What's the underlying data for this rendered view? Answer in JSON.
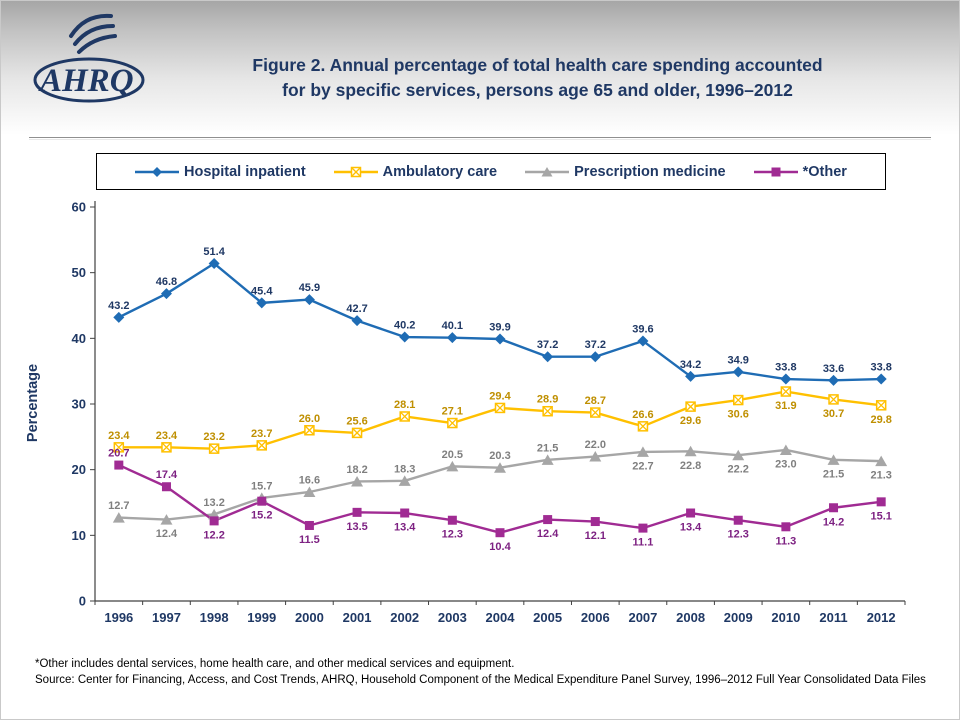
{
  "header": {
    "logo": "AHRQ",
    "title_line1": "Figure 2. Annual percentage of total health care spending accounted",
    "title_line2": "for by specific services, persons age 65 and older, 1996–2012"
  },
  "footnote": {
    "line1": "*Other includes dental services, home health care, and other medical services and equipment.",
    "line2": "Source: Center for Financing, Access, and Cost Trends, AHRQ, Household Component of the Medical Expenditure Panel Survey, 1996–2012 Full Year Consolidated Data Files"
  },
  "chart_data": {
    "type": "line",
    "title": "Figure 2. Annual percentage of total health care spending accounted for by specific services, persons age 65 and older, 1996–2012",
    "ylabel": "Percentage",
    "ylim": [
      0,
      60
    ],
    "yticks": [
      0,
      10,
      20,
      30,
      40,
      50,
      60
    ],
    "grid": false,
    "legend_position": "top",
    "x": [
      1996,
      1997,
      1998,
      1999,
      2000,
      2001,
      2002,
      2003,
      2004,
      2005,
      2006,
      2007,
      2008,
      2009,
      2010,
      2011,
      2012
    ],
    "series": [
      {
        "name": "Hospital inpatient",
        "marker": "diamond",
        "color": "#1F6CB4",
        "label_color": "#1F3864",
        "values": [
          43.2,
          46.8,
          51.4,
          45.4,
          45.9,
          42.7,
          40.2,
          40.1,
          39.9,
          37.2,
          37.2,
          39.6,
          34.2,
          34.9,
          33.8,
          33.6,
          33.8
        ],
        "label_side": [
          "above",
          "above",
          "above",
          "above",
          "above",
          "above",
          "above",
          "above",
          "above",
          "above",
          "above",
          "above",
          "above",
          "above",
          "above",
          "above",
          "above"
        ]
      },
      {
        "name": "Ambulatory care",
        "marker": "box-x",
        "color": "#FFC000",
        "label_color": "#BF8F00",
        "values": [
          23.4,
          23.4,
          23.2,
          23.7,
          26.0,
          25.6,
          28.1,
          27.1,
          29.4,
          28.9,
          28.7,
          26.6,
          29.6,
          30.6,
          31.9,
          30.7,
          29.8
        ],
        "label_side": [
          "above",
          "above",
          "above",
          "above",
          "above",
          "above",
          "above",
          "above",
          "above",
          "above",
          "above",
          "above",
          "below",
          "below",
          "below",
          "below",
          "below"
        ]
      },
      {
        "name": "Prescription medicine",
        "marker": "triangle",
        "color": "#A6A6A6",
        "label_color": "#7F7F7F",
        "values": [
          12.7,
          12.4,
          13.2,
          15.7,
          16.6,
          18.2,
          18.3,
          20.5,
          20.3,
          21.5,
          22.0,
          22.7,
          22.8,
          22.2,
          23.0,
          21.5,
          21.3
        ],
        "label_side": [
          "above",
          "below",
          "above",
          "above",
          "above",
          "above",
          "above",
          "above",
          "above",
          "above",
          "above",
          "below",
          "below",
          "below",
          "below",
          "below",
          "below"
        ]
      },
      {
        "name": "*Other",
        "marker": "square",
        "color": "#A02B93",
        "label_color": "#7D2182",
        "values": [
          20.7,
          17.4,
          12.2,
          15.2,
          11.5,
          13.5,
          13.4,
          12.3,
          10.4,
          12.4,
          12.1,
          11.1,
          13.4,
          12.3,
          11.3,
          14.2,
          15.1
        ],
        "label_side": [
          "above",
          "above",
          "below",
          "below",
          "below",
          "below",
          "below",
          "below",
          "below",
          "below",
          "below",
          "below",
          "below",
          "below",
          "below",
          "below",
          "below"
        ]
      }
    ]
  }
}
